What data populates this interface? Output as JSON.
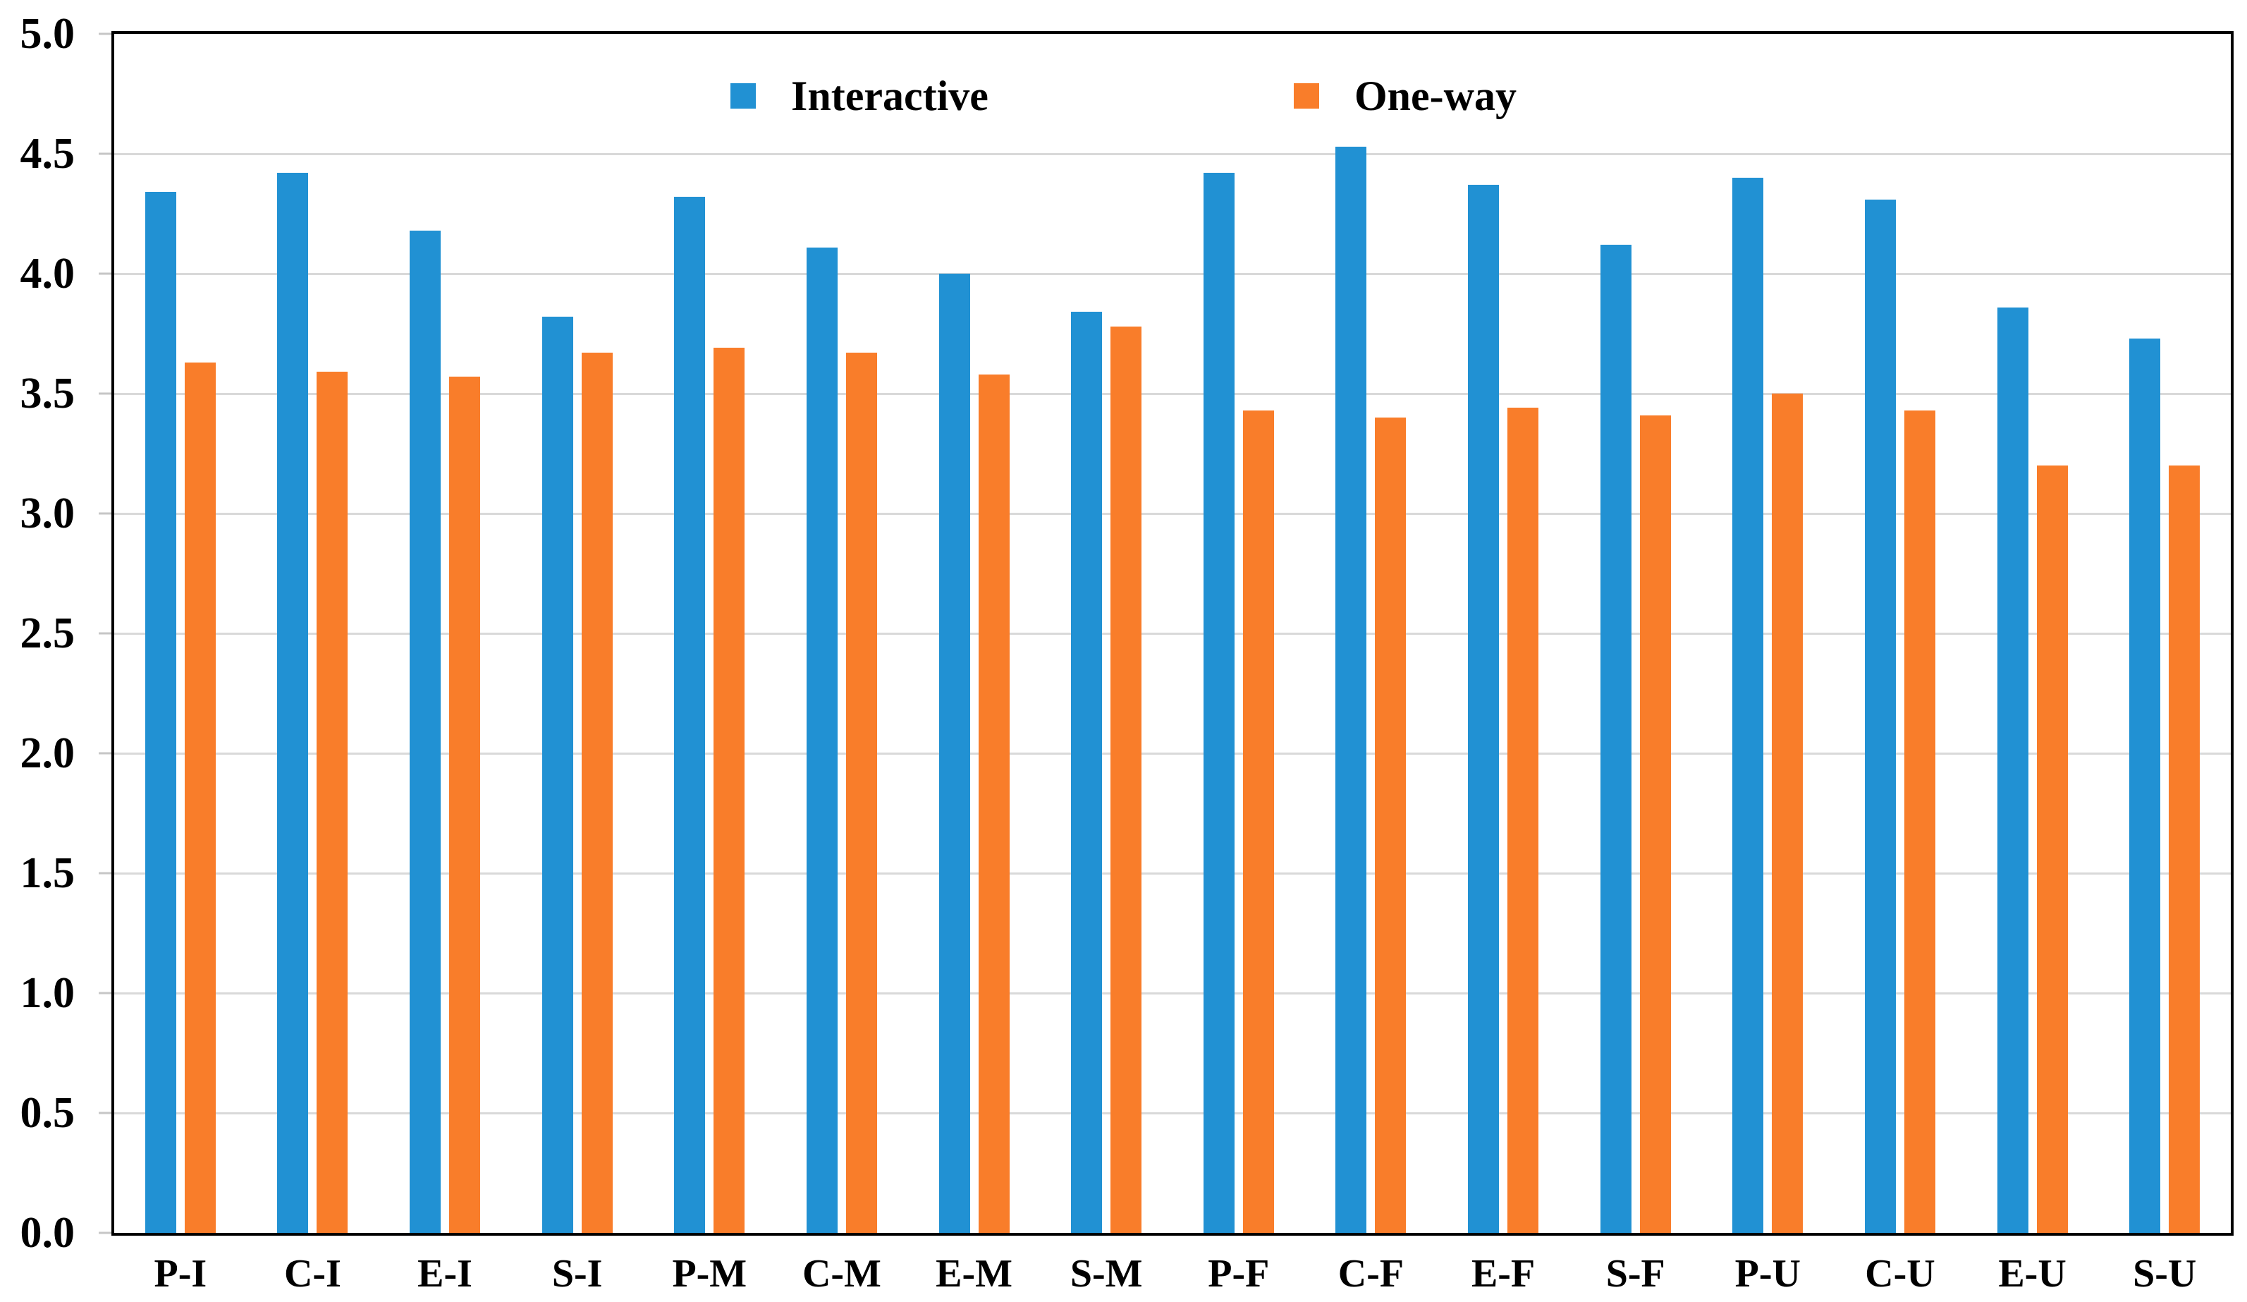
{
  "chart_data": {
    "type": "bar",
    "title": "",
    "xlabel": "",
    "ylabel": "",
    "categories": [
      "P-I",
      "C-I",
      "E-I",
      "S-I",
      "P-M",
      "C-M",
      "E-M",
      "S-M",
      "P-F",
      "C-F",
      "E-F",
      "S-F",
      "P-U",
      "C-U",
      "E-U",
      "S-U"
    ],
    "series": [
      {
        "name": "Interactive",
        "color": "#2191D3",
        "values": [
          4.34,
          4.42,
          4.18,
          3.82,
          4.32,
          4.11,
          4.0,
          3.84,
          4.42,
          4.53,
          4.37,
          4.12,
          4.4,
          4.31,
          3.86,
          3.73
        ]
      },
      {
        "name": "One-way",
        "color": "#F97D2A",
        "values": [
          3.63,
          3.59,
          3.57,
          3.67,
          3.69,
          3.67,
          3.58,
          3.78,
          3.43,
          3.4,
          3.44,
          3.41,
          3.5,
          3.43,
          3.2,
          3.2
        ]
      }
    ],
    "ylim": [
      0.0,
      5.0
    ],
    "ytick_step": 0.5,
    "ytick_labels": [
      "0.0",
      "0.5",
      "1.0",
      "1.5",
      "2.0",
      "2.5",
      "3.0",
      "3.5",
      "4.0",
      "4.5",
      "5.0"
    ],
    "grid": "horizontal",
    "gridline_color": "#D9D9D9",
    "tick_color": "#C6C6C6",
    "axis_color": "#000000",
    "legend_position": "top-inside"
  }
}
